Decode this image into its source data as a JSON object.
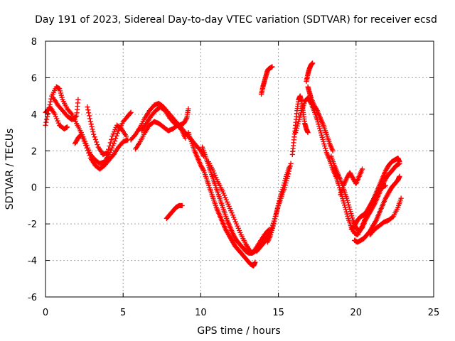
{
  "chart_data": {
    "type": "scatter",
    "title": "Day 191 of 2023, Sidereal Day-to-day VTEC variation (SDTVAR) for receiver ecsd",
    "xlabel": "GPS time / hours",
    "ylabel": "SDTVAR / TECUs",
    "xlim": [
      0,
      25
    ],
    "ylim": [
      -6,
      8
    ],
    "xticks": [
      "0",
      "5",
      "10",
      "15",
      "20",
      "25"
    ],
    "yticks": [
      "-6",
      "-4",
      "-2",
      "0",
      "2",
      "4",
      "6",
      "8"
    ],
    "grid": true,
    "marker": "plus",
    "series_color": "#ff0000",
    "traces": [
      [
        [
          0.0,
          3.4
        ],
        [
          0.2,
          4.2
        ],
        [
          0.4,
          5.0
        ],
        [
          0.7,
          5.5
        ],
        [
          0.9,
          5.4
        ],
        [
          1.1,
          4.8
        ],
        [
          1.4,
          4.3
        ],
        [
          1.7,
          4.0
        ],
        [
          2.0,
          3.5
        ],
        [
          2.3,
          3.0
        ],
        [
          2.6,
          2.4
        ],
        [
          2.9,
          1.8
        ],
        [
          3.2,
          1.5
        ],
        [
          3.5,
          1.3
        ],
        [
          3.8,
          1.4
        ],
        [
          4.1,
          1.8
        ],
        [
          4.4,
          2.4
        ],
        [
          4.7,
          3.1
        ],
        [
          5.0,
          3.6
        ],
        [
          5.3,
          3.9
        ],
        [
          5.5,
          4.1
        ]
      ],
      [
        [
          0.0,
          4.1
        ],
        [
          0.3,
          4.4
        ],
        [
          0.6,
          4.0
        ],
        [
          0.9,
          3.4
        ],
        [
          1.2,
          3.2
        ],
        [
          1.4,
          3.3
        ]
      ],
      [
        [
          0.5,
          4.9
        ],
        [
          0.8,
          4.5
        ],
        [
          1.1,
          4.2
        ],
        [
          1.4,
          3.9
        ],
        [
          1.7,
          3.7
        ],
        [
          2.0,
          3.9
        ],
        [
          2.1,
          4.8
        ]
      ],
      [
        [
          1.9,
          2.4
        ],
        [
          2.1,
          2.7
        ],
        [
          2.3,
          2.9
        ],
        [
          2.6,
          2.3
        ],
        [
          2.9,
          1.6
        ],
        [
          3.2,
          1.2
        ],
        [
          3.5,
          1.0
        ],
        [
          3.8,
          1.2
        ],
        [
          4.1,
          1.5
        ],
        [
          4.4,
          1.8
        ],
        [
          4.7,
          2.2
        ],
        [
          5.0,
          2.5
        ],
        [
          5.3,
          2.6
        ]
      ],
      [
        [
          2.7,
          4.4
        ],
        [
          2.9,
          3.6
        ],
        [
          3.1,
          2.9
        ],
        [
          3.4,
          2.2
        ],
        [
          3.7,
          1.8
        ],
        [
          4.0,
          1.9
        ],
        [
          4.3,
          2.8
        ],
        [
          4.6,
          3.4
        ],
        [
          4.9,
          3.2
        ],
        [
          5.2,
          2.8
        ]
      ],
      [
        [
          5.5,
          2.6
        ],
        [
          5.8,
          2.9
        ],
        [
          6.1,
          3.3
        ],
        [
          6.4,
          3.8
        ],
        [
          6.7,
          4.2
        ],
        [
          7.0,
          4.5
        ],
        [
          7.3,
          4.6
        ],
        [
          7.6,
          4.4
        ],
        [
          7.9,
          4.1
        ],
        [
          8.2,
          3.8
        ],
        [
          8.5,
          3.5
        ],
        [
          8.8,
          3.2
        ],
        [
          9.1,
          2.9
        ],
        [
          9.4,
          2.6
        ],
        [
          9.7,
          2.3
        ],
        [
          10.0,
          2.0
        ],
        [
          10.2,
          1.7
        ]
      ],
      [
        [
          5.8,
          2.1
        ],
        [
          6.1,
          2.5
        ],
        [
          6.4,
          3.0
        ],
        [
          6.7,
          3.4
        ],
        [
          7.0,
          3.6
        ],
        [
          7.3,
          3.5
        ],
        [
          7.6,
          3.3
        ],
        [
          7.9,
          3.1
        ],
        [
          8.2,
          3.2
        ],
        [
          8.5,
          3.4
        ],
        [
          8.8,
          3.1
        ],
        [
          9.0,
          2.7
        ]
      ],
      [
        [
          6.2,
          3.1
        ],
        [
          6.5,
          3.5
        ],
        [
          6.8,
          3.9
        ],
        [
          7.1,
          4.2
        ],
        [
          7.4,
          4.4
        ],
        [
          7.7,
          4.2
        ],
        [
          8.0,
          3.8
        ],
        [
          8.3,
          3.5
        ],
        [
          8.6,
          3.4
        ],
        [
          8.9,
          3.5
        ],
        [
          9.1,
          3.8
        ],
        [
          9.2,
          4.3
        ]
      ],
      [
        [
          7.8,
          -1.7
        ],
        [
          8.0,
          -1.5
        ],
        [
          8.2,
          -1.3
        ],
        [
          8.4,
          -1.1
        ],
        [
          8.6,
          -1.0
        ],
        [
          8.8,
          -1.0
        ]
      ],
      [
        [
          9.2,
          3.0
        ],
        [
          9.4,
          2.5
        ],
        [
          9.6,
          2.0
        ],
        [
          9.8,
          1.6
        ],
        [
          10.0,
          1.2
        ],
        [
          10.2,
          0.9
        ],
        [
          10.4,
          0.4
        ],
        [
          10.6,
          -0.1
        ],
        [
          10.8,
          -0.6
        ],
        [
          11.0,
          -1.1
        ],
        [
          11.2,
          -1.5
        ],
        [
          11.4,
          -1.9
        ],
        [
          11.6,
          -2.3
        ],
        [
          11.8,
          -2.6
        ],
        [
          12.0,
          -2.9
        ],
        [
          12.2,
          -3.2
        ],
        [
          12.4,
          -3.4
        ],
        [
          12.6,
          -3.6
        ],
        [
          12.8,
          -3.8
        ],
        [
          13.0,
          -4.0
        ],
        [
          13.2,
          -4.2
        ],
        [
          13.4,
          -4.3
        ],
        [
          13.5,
          -4.1
        ]
      ],
      [
        [
          10.1,
          2.2
        ],
        [
          10.3,
          1.7
        ],
        [
          10.5,
          1.2
        ],
        [
          10.7,
          0.7
        ],
        [
          10.9,
          0.2
        ],
        [
          11.1,
          -0.3
        ],
        [
          11.3,
          -0.8
        ],
        [
          11.5,
          -1.3
        ],
        [
          11.7,
          -1.8
        ],
        [
          11.9,
          -2.2
        ],
        [
          12.1,
          -2.6
        ],
        [
          12.3,
          -2.9
        ],
        [
          12.5,
          -3.1
        ],
        [
          12.7,
          -3.3
        ],
        [
          12.9,
          -3.5
        ],
        [
          13.1,
          -3.6
        ],
        [
          13.3,
          -3.6
        ],
        [
          13.5,
          -3.5
        ],
        [
          13.7,
          -3.3
        ],
        [
          13.9,
          -3.0
        ],
        [
          14.1,
          -2.7
        ],
        [
          14.3,
          -2.4
        ]
      ],
      [
        [
          10.5,
          1.4
        ],
        [
          10.8,
          0.9
        ],
        [
          11.1,
          0.3
        ],
        [
          11.4,
          -0.2
        ],
        [
          11.7,
          -0.8
        ],
        [
          12.0,
          -1.4
        ],
        [
          12.3,
          -2.0
        ],
        [
          12.6,
          -2.6
        ],
        [
          12.9,
          -3.1
        ],
        [
          13.1,
          -3.4
        ],
        [
          13.3,
          -3.6
        ],
        [
          13.5,
          -3.4
        ],
        [
          13.8,
          -3.0
        ],
        [
          14.1,
          -2.6
        ],
        [
          14.4,
          -2.3
        ]
      ],
      [
        [
          13.6,
          -3.5
        ],
        [
          13.8,
          -3.3
        ],
        [
          14.0,
          -3.1
        ],
        [
          14.2,
          -2.9
        ],
        [
          14.4,
          -2.6
        ],
        [
          14.6,
          -2.2
        ],
        [
          14.8,
          -1.6
        ],
        [
          15.0,
          -1.0
        ],
        [
          15.2,
          -0.5
        ],
        [
          15.4,
          0.0
        ],
        [
          15.6,
          0.6
        ],
        [
          15.8,
          1.3
        ]
      ],
      [
        [
          14.3,
          -3.0
        ],
        [
          14.5,
          -2.6
        ],
        [
          14.7,
          -2.0
        ],
        [
          14.9,
          -1.3
        ],
        [
          15.1,
          -0.6
        ],
        [
          15.3,
          0.0
        ],
        [
          15.5,
          0.6
        ],
        [
          15.7,
          1.1
        ]
      ],
      [
        [
          13.9,
          5.1
        ],
        [
          14.0,
          5.5
        ],
        [
          14.1,
          5.8
        ],
        [
          14.2,
          6.1
        ],
        [
          14.3,
          6.4
        ],
        [
          14.4,
          6.5
        ],
        [
          14.6,
          6.6
        ]
      ],
      [
        [
          15.9,
          1.8
        ],
        [
          16.0,
          2.6
        ],
        [
          16.1,
          3.4
        ],
        [
          16.2,
          4.2
        ],
        [
          16.3,
          4.8
        ],
        [
          16.4,
          5.0
        ],
        [
          16.5,
          4.7
        ],
        [
          16.6,
          4.1
        ],
        [
          16.7,
          3.5
        ],
        [
          16.8,
          3.2
        ],
        [
          16.9,
          3.0
        ]
      ],
      [
        [
          16.1,
          3.0
        ],
        [
          16.3,
          3.6
        ],
        [
          16.5,
          4.2
        ],
        [
          16.7,
          4.7
        ],
        [
          16.9,
          4.9
        ],
        [
          17.1,
          4.6
        ],
        [
          17.3,
          4.2
        ],
        [
          17.5,
          3.7
        ],
        [
          17.7,
          3.1
        ],
        [
          17.9,
          2.5
        ],
        [
          18.1,
          1.9
        ],
        [
          18.3,
          1.5
        ],
        [
          18.5,
          1.0
        ],
        [
          18.7,
          0.6
        ],
        [
          18.9,
          0.1
        ],
        [
          19.1,
          -0.5
        ],
        [
          19.3,
          -1.1
        ],
        [
          19.5,
          -1.7
        ],
        [
          19.7,
          -2.2
        ],
        [
          19.9,
          -2.5
        ],
        [
          20.1,
          -2.6
        ],
        [
          20.3,
          -2.3
        ],
        [
          20.5,
          -1.9
        ],
        [
          20.7,
          -1.5
        ],
        [
          20.9,
          -1.1
        ],
        [
          21.1,
          -0.7
        ],
        [
          21.3,
          -0.3
        ],
        [
          21.5,
          0.1
        ],
        [
          21.7,
          0.5
        ],
        [
          21.9,
          0.9
        ],
        [
          22.1,
          1.2
        ],
        [
          22.3,
          1.4
        ],
        [
          22.5,
          1.5
        ],
        [
          22.7,
          1.6
        ],
        [
          22.8,
          1.4
        ]
      ],
      [
        [
          16.8,
          5.8
        ],
        [
          16.9,
          6.2
        ],
        [
          17.0,
          6.5
        ],
        [
          17.1,
          6.7
        ],
        [
          17.2,
          6.8
        ]
      ],
      [
        [
          16.9,
          5.5
        ],
        [
          17.0,
          5.2
        ],
        [
          17.1,
          4.9
        ],
        [
          17.3,
          4.5
        ],
        [
          17.5,
          4.2
        ],
        [
          17.7,
          3.8
        ],
        [
          17.9,
          3.4
        ],
        [
          18.1,
          2.9
        ],
        [
          18.3,
          2.4
        ],
        [
          18.5,
          2.0
        ]
      ],
      [
        [
          18.4,
          1.7
        ],
        [
          18.6,
          1.2
        ],
        [
          18.8,
          0.8
        ],
        [
          19.0,
          0.4
        ],
        [
          19.2,
          -0.1
        ],
        [
          19.4,
          -0.6
        ],
        [
          19.6,
          -1.2
        ],
        [
          19.8,
          -1.8
        ],
        [
          20.0,
          -2.2
        ],
        [
          20.2,
          -2.4
        ],
        [
          20.4,
          -2.2
        ],
        [
          20.6,
          -1.8
        ],
        [
          20.8,
          -1.5
        ],
        [
          21.0,
          -1.2
        ],
        [
          21.2,
          -0.9
        ],
        [
          21.4,
          -0.5
        ],
        [
          21.6,
          -0.1
        ],
        [
          21.8,
          0.3
        ],
        [
          22.0,
          0.6
        ],
        [
          22.2,
          0.8
        ],
        [
          22.4,
          1.0
        ],
        [
          22.6,
          1.2
        ],
        [
          22.8,
          1.3
        ]
      ],
      [
        [
          19.0,
          -0.4
        ],
        [
          19.2,
          0.1
        ],
        [
          19.4,
          0.5
        ],
        [
          19.6,
          0.8
        ],
        [
          19.8,
          0.5
        ],
        [
          20.0,
          0.2
        ],
        [
          20.2,
          0.6
        ],
        [
          20.4,
          1.0
        ]
      ],
      [
        [
          19.9,
          -2.9
        ],
        [
          20.1,
          -3.0
        ],
        [
          20.3,
          -2.9
        ],
        [
          20.5,
          -2.8
        ],
        [
          20.7,
          -2.6
        ],
        [
          20.9,
          -2.4
        ],
        [
          21.1,
          -2.1
        ],
        [
          21.3,
          -1.8
        ],
        [
          21.5,
          -1.4
        ],
        [
          21.7,
          -1.0
        ],
        [
          21.9,
          -0.6
        ],
        [
          22.1,
          -0.3
        ],
        [
          22.3,
          0.0
        ],
        [
          22.5,
          0.2
        ],
        [
          22.7,
          0.4
        ],
        [
          22.8,
          0.6
        ]
      ],
      [
        [
          19.7,
          -2.3
        ],
        [
          19.9,
          -2.1
        ],
        [
          20.1,
          -1.8
        ],
        [
          20.3,
          -1.6
        ],
        [
          20.5,
          -1.5
        ],
        [
          20.7,
          -1.3
        ],
        [
          20.9,
          -1.0
        ],
        [
          21.1,
          -0.7
        ],
        [
          21.3,
          -0.4
        ],
        [
          21.5,
          -0.2
        ],
        [
          21.7,
          0.0
        ],
        [
          21.9,
          0.1
        ]
      ],
      [
        [
          20.9,
          -2.6
        ],
        [
          21.2,
          -2.3
        ],
        [
          21.5,
          -2.1
        ],
        [
          21.8,
          -1.9
        ],
        [
          22.1,
          -1.8
        ],
        [
          22.4,
          -1.6
        ],
        [
          22.7,
          -1.1
        ],
        [
          22.9,
          -0.6
        ]
      ]
    ]
  }
}
